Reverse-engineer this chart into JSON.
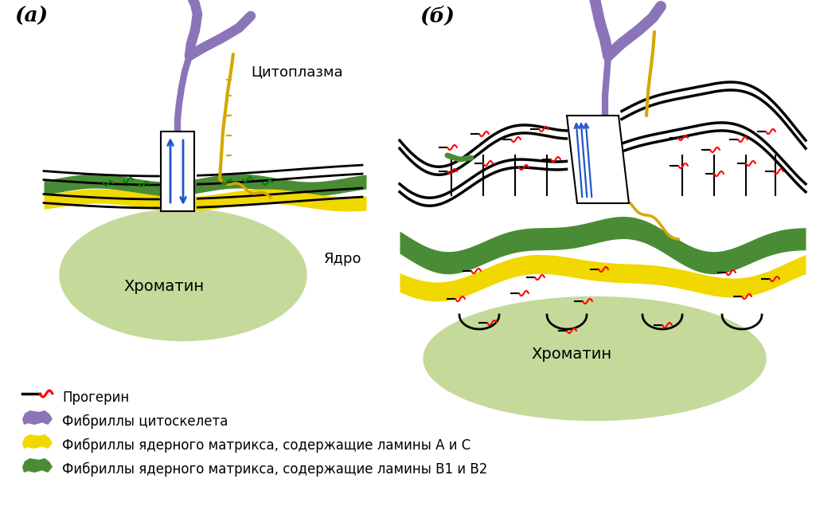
{
  "bg_color": "#ffffff",
  "label_a": "(а)",
  "label_b": "(б)",
  "cytoplasm_label": "Цитоплазма",
  "nucleus_label": "Ядро",
  "chromatin_label_a": "Хроматин",
  "chromatin_label_b": "Хроматин",
  "legend_items": [
    {
      "label": "Прогерин"
    },
    {
      "label": "Фибриллы цитоскелета"
    },
    {
      "label": "Фибриллы ядерного матрикса, содержащие ламины А и С"
    },
    {
      "label": "Фибриллы ядерного матрикса, содержащие ламины В1 и В2"
    }
  ],
  "colors": {
    "black": "#000000",
    "purple": "#8B75B8",
    "yellow": "#F0D800",
    "green": "#4A8C35",
    "light_green": "#C5D99A",
    "blue": "#2255CC",
    "red": "#FF2200",
    "white": "#FFFFFF",
    "yellow_dark": "#D4A800"
  }
}
